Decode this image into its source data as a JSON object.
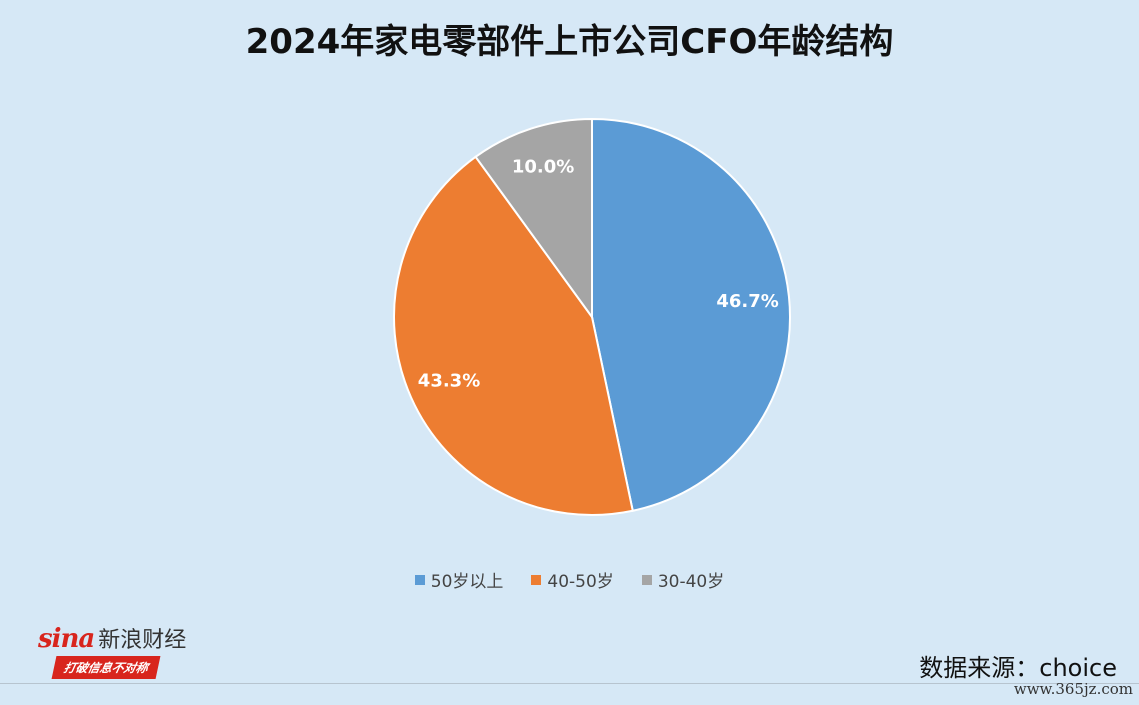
{
  "title": "2024年家电零部件上市公司CFO年龄结构",
  "chart_data": {
    "type": "pie",
    "slices": [
      {
        "label": "50岁以上",
        "value": 46.7,
        "display": "46.7%",
        "color": "#5b9bd5"
      },
      {
        "label": "40-50岁",
        "value": 43.3,
        "display": "43.3%",
        "color": "#ed7d31"
      },
      {
        "label": "30-40岁",
        "value": 10.0,
        "display": "10.0%",
        "color": "#a5a5a5"
      }
    ],
    "legend_position": "bottom",
    "start_angle_deg": 0,
    "direction": "clockwise"
  },
  "logo": {
    "brand": "sina",
    "name": "新浪财经",
    "slogan": "打破信息不对称"
  },
  "source": "数据来源：choice",
  "watermark": "www.365jz.com"
}
